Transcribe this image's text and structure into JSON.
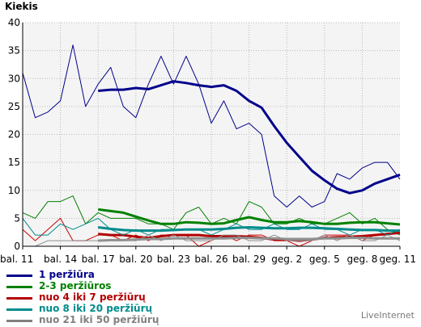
{
  "chart_data": {
    "type": "line",
    "ylabel": "Kiekis",
    "ylim": [
      0,
      40
    ],
    "yticks": [
      0,
      5,
      10,
      15,
      20,
      25,
      30,
      35,
      40
    ],
    "x_tick_labels": [
      "bal. 11",
      "bal. 14",
      "bal. 17",
      "bal. 20",
      "bal. 23",
      "bal. 26",
      "bal. 29",
      "geg. 2",
      "geg. 5",
      "geg. 8",
      "geg. 11"
    ],
    "grid": true,
    "legend_position": "bottom-left",
    "series": [
      {
        "name": "1 peržiūra",
        "color": "#00008b",
        "width": 1,
        "values": [
          31,
          23,
          24,
          26,
          36,
          25,
          29,
          32,
          25,
          23,
          29,
          34,
          29,
          34,
          29,
          22,
          26,
          21,
          22,
          20,
          9,
          7,
          9,
          7,
          8,
          13,
          12,
          14,
          15,
          15,
          12
        ]
      },
      {
        "name": "1 peržiūra",
        "color": "#00008b",
        "width": 3,
        "values": [
          null,
          null,
          null,
          null,
          null,
          null,
          27.8,
          28,
          28,
          28.3,
          28.1,
          28.8,
          29.5,
          29.2,
          28.8,
          28.5,
          28.8,
          27.8,
          26,
          24.8,
          21.5,
          18.5,
          16,
          13.5,
          11.8,
          10.3,
          9.5,
          10,
          11.2,
          12,
          12.8
        ]
      },
      {
        "name": "2-3 peržiūros",
        "color": "#008000",
        "width": 1,
        "values": [
          6,
          5,
          8,
          8,
          9,
          4,
          6,
          5,
          5,
          5,
          4,
          4,
          3,
          6,
          7,
          4,
          5,
          4,
          8,
          7,
          4,
          4,
          5,
          4,
          4,
          5,
          6,
          4,
          5,
          3,
          2
        ]
      },
      {
        "name": "2-3 peržiūros",
        "color": "#008000",
        "width": 3,
        "values": [
          null,
          null,
          null,
          null,
          null,
          null,
          6.6,
          6.3,
          6,
          5.3,
          4.6,
          4,
          4,
          4.3,
          4.2,
          4,
          4.1,
          4.7,
          5.2,
          4.7,
          4.3,
          4.3,
          4.5,
          4.3,
          4,
          4,
          4.2,
          4.3,
          4.3,
          4.1,
          3.9
        ]
      },
      {
        "name": "nuo 4 iki 7 peržiūrų",
        "color": "#cc0000",
        "width": 1,
        "values": [
          3,
          1,
          3,
          5,
          1,
          1,
          2,
          2,
          1,
          2,
          1,
          2,
          2,
          2,
          0,
          1,
          2,
          1,
          2,
          2,
          1,
          1,
          0,
          1,
          2,
          2,
          2,
          1,
          2,
          2,
          3
        ]
      },
      {
        "name": "nuo 4 iki 7 peržiūrų",
        "color": "#b20000",
        "width": 3,
        "values": [
          null,
          null,
          null,
          null,
          null,
          null,
          2.2,
          2,
          2,
          1.7,
          1.5,
          1.8,
          2,
          2,
          2,
          1.8,
          1.8,
          1.8,
          1.7,
          1.5,
          1.2,
          1.2,
          1,
          1.2,
          1.5,
          1.6,
          1.7,
          1.8,
          2,
          2.2,
          2.4
        ]
      },
      {
        "name": "nuo 8 iki 20 peržiūrų",
        "color": "#008b8b",
        "width": 1,
        "values": [
          5,
          2,
          2,
          4,
          3,
          4,
          5,
          3,
          2,
          3,
          2,
          3,
          3,
          3,
          3,
          2,
          3,
          4,
          3,
          3,
          4,
          3,
          3,
          4,
          3,
          3,
          2,
          3,
          3,
          2,
          3
        ]
      },
      {
        "name": "nuo 8 iki 20 peržiūrų",
        "color": "#008b8b",
        "width": 3,
        "values": [
          null,
          null,
          null,
          null,
          null,
          null,
          3.4,
          3.1,
          2.9,
          2.8,
          2.8,
          2.8,
          2.9,
          3,
          3,
          3,
          3.1,
          3.3,
          3.4,
          3.3,
          3.2,
          3.2,
          3.3,
          3.3,
          3.2,
          3.1,
          3,
          2.9,
          2.9,
          2.8,
          2.8
        ]
      },
      {
        "name": "nuo 21 iki 50 peržiūrų",
        "color": "#909090",
        "width": 1,
        "values": [
          0,
          0,
          1,
          1,
          1,
          1,
          1,
          1,
          1,
          1,
          2,
          1,
          2,
          1,
          1,
          1,
          2,
          2,
          1,
          1,
          2,
          1,
          1,
          1,
          2,
          1,
          2,
          1,
          1,
          2,
          1
        ]
      },
      {
        "name": "nuo 21 iki 50 peržiūrų",
        "color": "#909090",
        "width": 3,
        "values": [
          null,
          null,
          null,
          null,
          null,
          null,
          1,
          1.1,
          1.1,
          1.2,
          1.3,
          1.3,
          1.4,
          1.4,
          1.4,
          1.4,
          1.4,
          1.5,
          1.5,
          1.4,
          1.4,
          1.3,
          1.3,
          1.3,
          1.4,
          1.4,
          1.5,
          1.5,
          1.4,
          1.4,
          1.4
        ]
      }
    ]
  },
  "legend": [
    {
      "label": "1 peržiūra",
      "color": "#00008b"
    },
    {
      "label": "2-3 peržiūros",
      "color": "#008000"
    },
    {
      "label": "nuo 4 iki 7 peržiūrų",
      "color": "#b20000"
    },
    {
      "label": "nuo 8 iki 20 peržiūrų",
      "color": "#008b8b"
    },
    {
      "label": "nuo 21 iki 50 peržiūrų",
      "color": "#808080"
    }
  ],
  "brand": "LiveInternet"
}
